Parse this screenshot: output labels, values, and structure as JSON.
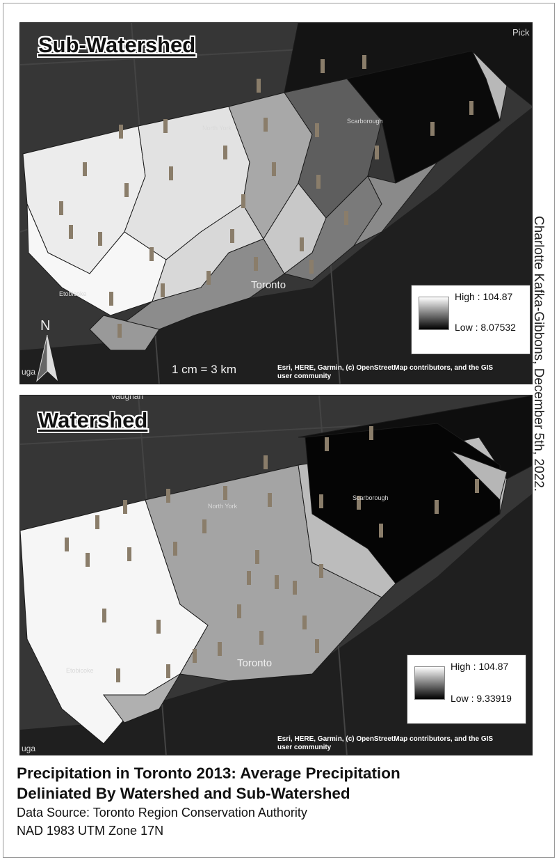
{
  "maps": [
    {
      "title": "Sub-Watershed",
      "legend": {
        "high": "High : 104.87",
        "low": "Low : 8.07532"
      },
      "scale_text": "1 cm = 3 km",
      "north_label": "N",
      "attribution": [
        "Esri, HERE, Garmin, (c) OpenStreetMap contributors, and the GIS",
        "user community"
      ],
      "places": {
        "pickering": "Pick",
        "north_york": "North York",
        "scarborough": "Scarborough",
        "toronto": "Toronto",
        "etobicoke": "Etobicoke",
        "mississauga": "uga"
      }
    },
    {
      "title": "Watershed",
      "legend": {
        "high": "High : 104.87",
        "low": "Low : 9.33919"
      },
      "attribution": [
        "Esri, HERE, Garmin, (c) OpenStreetMap contributors, and the GIS",
        "user community"
      ],
      "places": {
        "vaughan": "Vaughan",
        "north_york": "North York",
        "scarborough": "Scarborough",
        "toronto": "Toronto",
        "etobicoke": "Etobicoke",
        "mississauga": "uga"
      }
    }
  ],
  "author_credit": "Charlotte Kafka-Gibbons, December 5th, 2022.",
  "footer": {
    "title_line1": "Precipitation in Toronto 2013: Average Precipitation",
    "title_line2": "Deliniated By Watershed and Sub-Watershed",
    "data_source": "Data Source: Toronto Region Conservation Authority",
    "projection": "NAD 1983 UTM Zone 17N"
  },
  "colors": {
    "basemap": "#2b2b2b",
    "lake": "#1e1e1e",
    "high": "#ffffff",
    "low": "#000000"
  }
}
